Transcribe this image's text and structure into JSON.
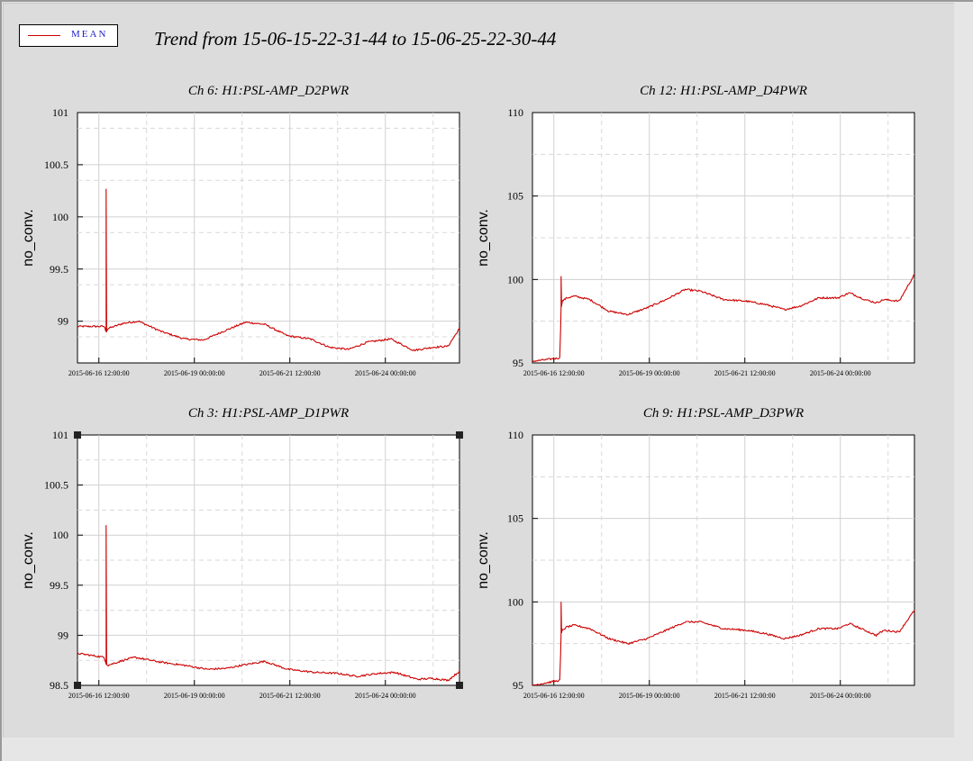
{
  "legend": {
    "label": "MEAN",
    "color": "#cc0000"
  },
  "title": "Trend from 15-06-15-22-31-44 to 15-06-25-22-30-44",
  "chart_data": [
    {
      "type": "line",
      "title": "Ch 6: H1:PSL-AMP_D2PWR",
      "ylabel": "no_conv.",
      "ylim": [
        98.6,
        101
      ],
      "yticks": [
        99,
        99.5,
        100,
        100.5,
        101
      ],
      "ytick_labels": [
        "99",
        "99.5",
        "100",
        "100.5",
        "101"
      ],
      "xlim_days": [
        0,
        10
      ],
      "xticks_days": [
        0.56,
        3.06,
        5.56,
        8.06
      ],
      "xtick_labels": [
        "2015-06-16 12:00:00",
        "2015-06-19 00:00:00",
        "2015-06-21 12:00:00",
        "2015-06-24 00:00:00"
      ],
      "spike": {
        "day": 0.75,
        "value": 100.27
      },
      "series": [
        {
          "name": "MEAN",
          "x_days": [
            0,
            0.7,
            0.75,
            0.8,
            1.2,
            1.6,
            2.2,
            2.8,
            3.3,
            3.8,
            4.4,
            4.9,
            5.5,
            6.1,
            6.6,
            7.1,
            7.6,
            8.2,
            8.8,
            9.3,
            9.7,
            10
          ],
          "values": [
            98.95,
            98.95,
            98.9,
            98.93,
            98.98,
            99.0,
            98.9,
            98.83,
            98.82,
            98.9,
            98.99,
            98.97,
            98.86,
            98.83,
            98.75,
            98.73,
            98.8,
            98.83,
            98.72,
            98.75,
            98.76,
            98.93
          ]
        }
      ]
    },
    {
      "type": "line",
      "title": "Ch 12: H1:PSL-AMP_D4PWR",
      "ylabel": "no_conv.",
      "ylim": [
        95,
        110
      ],
      "yticks": [
        95,
        100,
        105,
        110
      ],
      "ytick_labels": [
        "95",
        "100",
        "105",
        "110"
      ],
      "xlim_days": [
        0,
        10
      ],
      "xticks_days": [
        0.56,
        3.06,
        5.56,
        8.06
      ],
      "xtick_labels": [
        "2015-06-16 12:00:00",
        "2015-06-19 00:00:00",
        "2015-06-21 12:00:00",
        "2015-06-24 00:00:00"
      ],
      "spike": {
        "day": 0.75,
        "value": 100.2
      },
      "series": [
        {
          "name": "MEAN",
          "x_days": [
            0,
            0.72,
            0.75,
            0.78,
            0.9,
            1.1,
            1.5,
            2.0,
            2.5,
            3.0,
            3.5,
            4.0,
            4.4,
            5.0,
            5.6,
            6.1,
            6.6,
            7.0,
            7.5,
            8.0,
            8.3,
            8.7,
            9.0,
            9.2,
            9.6,
            10
          ],
          "values": [
            95.1,
            95.3,
            98.3,
            98.7,
            98.9,
            99.0,
            98.8,
            98.1,
            97.9,
            98.3,
            98.8,
            99.4,
            99.3,
            98.8,
            98.7,
            98.5,
            98.2,
            98.4,
            98.9,
            98.9,
            99.2,
            98.8,
            98.6,
            98.8,
            98.7,
            100.3
          ]
        }
      ]
    },
    {
      "type": "line",
      "title": "Ch 3: H1:PSL-AMP_D1PWR",
      "ylabel": "no_conv.",
      "ylim": [
        98.5,
        101
      ],
      "yticks": [
        98.5,
        99,
        99.5,
        100,
        100.5,
        101
      ],
      "ytick_labels": [
        "98.5",
        "99",
        "99.5",
        "100",
        "100.5",
        "101"
      ],
      "xlim_days": [
        0,
        10
      ],
      "xticks_days": [
        0.56,
        3.06,
        5.56,
        8.06
      ],
      "xtick_labels": [
        "2015-06-16 12:00:00",
        "2015-06-19 00:00:00",
        "2015-06-21 12:00:00",
        "2015-06-24 00:00:00"
      ],
      "spike": {
        "day": 0.75,
        "value": 100.1
      },
      "series": [
        {
          "name": "MEAN",
          "x_days": [
            0,
            0.7,
            0.75,
            0.8,
            1.2,
            1.5,
            2.2,
            2.8,
            3.4,
            3.9,
            4.3,
            4.9,
            5.5,
            6.2,
            6.8,
            7.3,
            7.9,
            8.3,
            8.9,
            9.3,
            9.7,
            10
          ],
          "values": [
            98.82,
            98.78,
            98.72,
            98.7,
            98.75,
            98.78,
            98.73,
            98.7,
            98.66,
            98.67,
            98.7,
            98.74,
            98.66,
            98.63,
            98.62,
            98.59,
            98.62,
            98.63,
            98.56,
            98.57,
            98.55,
            98.64
          ]
        }
      ]
    },
    {
      "type": "line",
      "title": "Ch 9: H1:PSL-AMP_D3PWR",
      "ylabel": "no_conv.",
      "ylim": [
        95,
        110
      ],
      "yticks": [
        95,
        100,
        105,
        110
      ],
      "ytick_labels": [
        "95",
        "100",
        "105",
        "110"
      ],
      "xlim_days": [
        0,
        10
      ],
      "xticks_days": [
        0.56,
        3.06,
        5.56,
        8.06
      ],
      "xtick_labels": [
        "2015-06-16 12:00:00",
        "2015-06-19 00:00:00",
        "2015-06-21 12:00:00",
        "2015-06-24 00:00:00"
      ],
      "spike": {
        "day": 0.75,
        "value": 100.0
      },
      "series": [
        {
          "name": "MEAN",
          "x_days": [
            0,
            0.72,
            0.75,
            0.78,
            0.9,
            1.1,
            1.5,
            2.0,
            2.5,
            3.0,
            3.5,
            4.0,
            4.4,
            5.0,
            5.6,
            6.1,
            6.6,
            7.0,
            7.5,
            8.0,
            8.3,
            8.7,
            9.0,
            9.2,
            9.6,
            10
          ],
          "values": [
            95.0,
            95.3,
            98.0,
            98.3,
            98.5,
            98.6,
            98.4,
            97.8,
            97.5,
            97.8,
            98.3,
            98.8,
            98.8,
            98.4,
            98.3,
            98.1,
            97.8,
            98.0,
            98.4,
            98.4,
            98.7,
            98.3,
            98.0,
            98.3,
            98.2,
            99.5
          ]
        }
      ]
    }
  ]
}
